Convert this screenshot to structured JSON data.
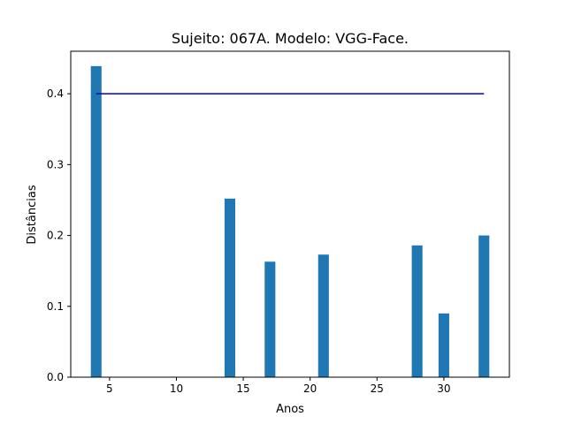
{
  "chart_data": {
    "type": "bar",
    "title": "Sujeito: 067A. Modelo: VGG-Face.",
    "xlabel": "Anos",
    "ylabel": "Distâncias",
    "xlim": [
      2.1,
      34.9
    ],
    "ylim": [
      0.0,
      0.46
    ],
    "x_ticks": [
      5,
      10,
      15,
      20,
      25,
      30
    ],
    "y_ticks": [
      0.0,
      0.1,
      0.2,
      0.3,
      0.4
    ],
    "y_tick_labels": [
      "0.0",
      "0.1",
      "0.2",
      "0.3",
      "0.4"
    ],
    "bar_width": 0.8,
    "bars": {
      "x": [
        4,
        14,
        17,
        21,
        28,
        30,
        33
      ],
      "values": [
        0.439,
        0.252,
        0.163,
        0.173,
        0.186,
        0.09,
        0.2
      ],
      "color": "#1f77b4"
    },
    "threshold_line": {
      "x": [
        4,
        33
      ],
      "y": 0.4,
      "color": "#0000cc"
    },
    "grid": false
  }
}
